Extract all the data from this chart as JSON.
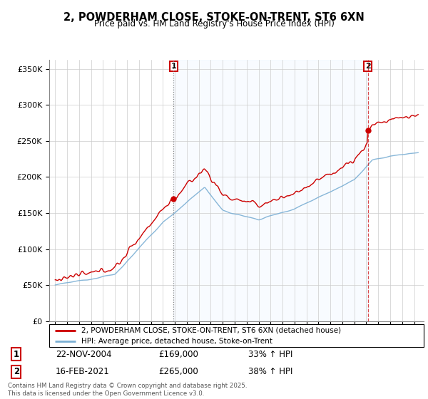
{
  "title": "2, POWDERHAM CLOSE, STOKE-ON-TRENT, ST6 6XN",
  "subtitle": "Price paid vs. HM Land Registry's House Price Index (HPI)",
  "legend_entry1": "2, POWDERHAM CLOSE, STOKE-ON-TRENT, ST6 6XN (detached house)",
  "legend_entry2": "HPI: Average price, detached house, Stoke-on-Trent",
  "purchase1_date": "22-NOV-2004",
  "purchase1_price": 169000,
  "purchase1_hpi": "33% ↑ HPI",
  "purchase2_date": "16-FEB-2021",
  "purchase2_price": 265000,
  "purchase2_hpi": "38% ↑ HPI",
  "footer": "Contains HM Land Registry data © Crown copyright and database right 2025.\nThis data is licensed under the Open Government Licence v3.0.",
  "red_color": "#cc0000",
  "blue_color": "#7bafd4",
  "shade_color": "#ddeeff",
  "marker1_x": 2004.9,
  "marker2_x": 2021.12,
  "ylim_min": 0,
  "ylim_max": 362500,
  "xlim_min": 1994.5,
  "xlim_max": 2025.8
}
